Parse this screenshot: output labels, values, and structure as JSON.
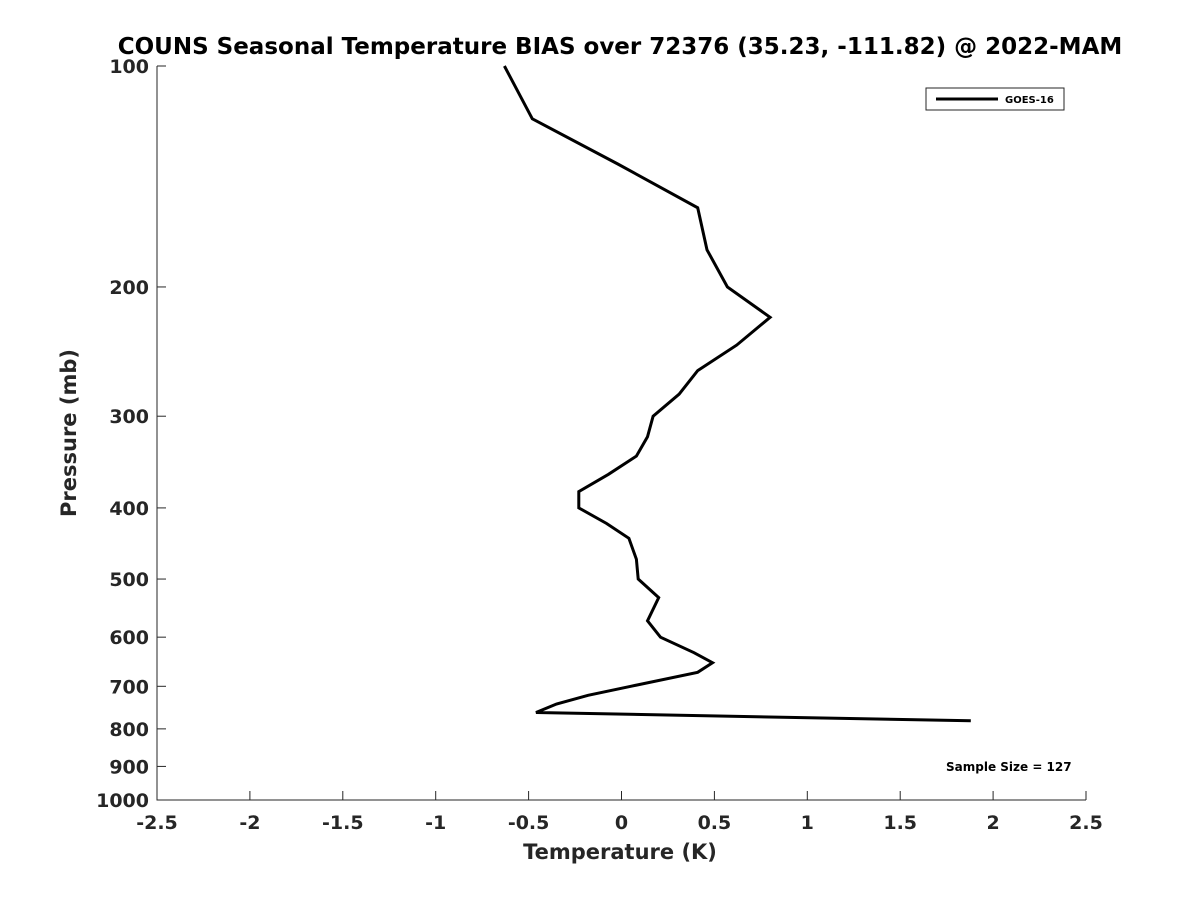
{
  "chart_data": {
    "type": "line",
    "title": "COUNS Seasonal Temperature BIAS over 72376 (35.23, -111.82) @ 2022-MAM",
    "xlabel": "Temperature (K)",
    "ylabel": "Pressure (mb)",
    "xlim": [
      -2.5,
      2.5
    ],
    "ylim": [
      100,
      1000
    ],
    "y_scale": "log",
    "y_reversed": true,
    "grid": false,
    "x_ticks": [
      -2.5,
      -2,
      -1.5,
      -1,
      -0.5,
      0,
      0.5,
      1,
      1.5,
      2,
      2.5
    ],
    "x_tick_labels": [
      "-2.5",
      "-2",
      "-1.5",
      "-1",
      "-0.5",
      "0",
      "0.5",
      "1",
      "1.5",
      "2",
      "2.5"
    ],
    "y_ticks": [
      100,
      200,
      300,
      400,
      500,
      600,
      700,
      800,
      900,
      1000
    ],
    "y_tick_labels": [
      "100",
      "200",
      "300",
      "400",
      "500",
      "600",
      "700",
      "800",
      "900",
      "1000"
    ],
    "legend": {
      "placement": "top-right",
      "entries": [
        "GOES-16"
      ]
    },
    "annotation": "Sample Size = 127",
    "series": [
      {
        "name": "GOES-16",
        "color": "#000000",
        "points": [
          {
            "t": -0.63,
            "p": 100
          },
          {
            "t": -0.48,
            "p": 118
          },
          {
            "t": -0.02,
            "p": 136
          },
          {
            "t": 0.41,
            "p": 156
          },
          {
            "t": 0.46,
            "p": 178
          },
          {
            "t": 0.57,
            "p": 200
          },
          {
            "t": 0.8,
            "p": 220
          },
          {
            "t": 0.62,
            "p": 240
          },
          {
            "t": 0.41,
            "p": 260
          },
          {
            "t": 0.31,
            "p": 280
          },
          {
            "t": 0.17,
            "p": 300
          },
          {
            "t": 0.14,
            "p": 320
          },
          {
            "t": 0.08,
            "p": 340
          },
          {
            "t": -0.07,
            "p": 360
          },
          {
            "t": -0.23,
            "p": 380
          },
          {
            "t": -0.23,
            "p": 400
          },
          {
            "t": -0.08,
            "p": 420
          },
          {
            "t": 0.04,
            "p": 440
          },
          {
            "t": 0.08,
            "p": 470
          },
          {
            "t": 0.09,
            "p": 500
          },
          {
            "t": 0.2,
            "p": 530
          },
          {
            "t": 0.14,
            "p": 570
          },
          {
            "t": 0.21,
            "p": 600
          },
          {
            "t": 0.39,
            "p": 630
          },
          {
            "t": 0.49,
            "p": 650
          },
          {
            "t": 0.41,
            "p": 670
          },
          {
            "t": 0.05,
            "p": 700
          },
          {
            "t": -0.18,
            "p": 720
          },
          {
            "t": -0.35,
            "p": 740
          },
          {
            "t": -0.46,
            "p": 760
          },
          {
            "t": 1.88,
            "p": 780
          }
        ]
      }
    ]
  }
}
